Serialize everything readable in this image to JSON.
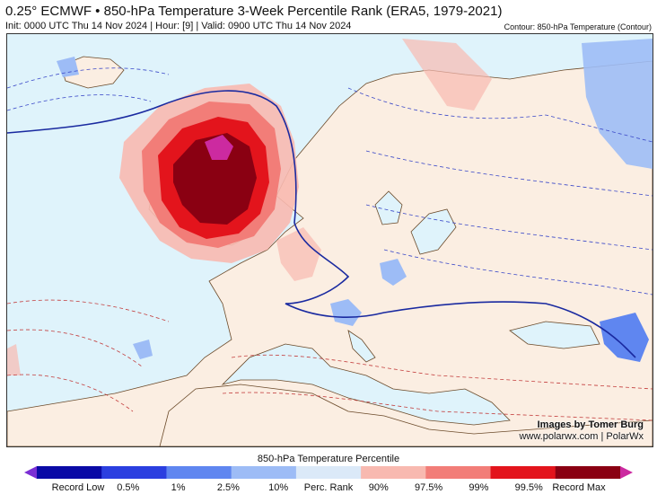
{
  "header": {
    "title": "0.25° ECMWF • 850-hPa Temperature 3-Week Percentile Rank (ERA5, 1979-2021)",
    "subtitle": "Init: 0000 UTC Thu 14 Nov 2024 | Hour: [9] | Valid: 0900 UTC Thu 14 Nov 2024",
    "contour_note": "Contour: 850-hPa Temperature (Contour)"
  },
  "map": {
    "credit_line1": "Images by Tomer Burg",
    "credit_line2": "www.polarwx.com | PolarWx"
  },
  "colorbar": {
    "title": "850-hPa Temperature Percentile",
    "colors": [
      "#7b2fd4",
      "#0a0aa6",
      "#2b3fe0",
      "#5f86f0",
      "#9dbcf6",
      "#dbe9f8",
      "#f8b9b0",
      "#f27d78",
      "#e3141c",
      "#8a0012",
      "#cc2aa0"
    ],
    "labels": [
      "Record Low",
      "0.5%",
      "1%",
      "2.5%",
      "10%",
      "Perc. Rank",
      "90%",
      "97.5%",
      "99%",
      "99.5%",
      "Record Max"
    ]
  }
}
